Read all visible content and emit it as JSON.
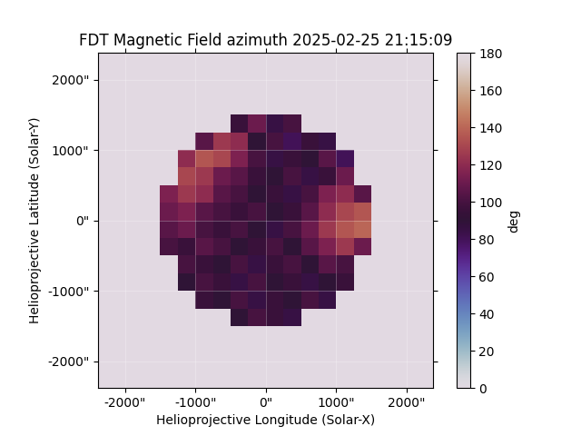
{
  "chart_data": {
    "type": "heatmap",
    "title": "FDT Magnetic Field azimuth 2025-02-25 21:15:09",
    "x_label": "Helioprojective Longitude (Solar-X)",
    "y_label": "Helioprojective Latitude (Solar-Y)",
    "xlim": [
      -2380,
      2380
    ],
    "ylim": [
      -2380,
      2380
    ],
    "xticks": [
      {
        "value": -2000,
        "label": "-2000\""
      },
      {
        "value": -1000,
        "label": "-1000\""
      },
      {
        "value": 0,
        "label": "0\""
      },
      {
        "value": 1000,
        "label": "1000\""
      },
      {
        "value": 2000,
        "label": "2000\""
      }
    ],
    "yticks": [
      {
        "value": -2000,
        "label": "-2000\""
      },
      {
        "value": -1000,
        "label": "-1000\""
      },
      {
        "value": 0,
        "label": "0\""
      },
      {
        "value": 1000,
        "label": "1000\""
      },
      {
        "value": 2000,
        "label": "2000\""
      }
    ],
    "grid": true,
    "color": "twilight",
    "x_edges": [
      -1500,
      -1250,
      -1000,
      -750,
      -500,
      -250,
      0,
      250,
      500,
      750,
      1000,
      1250,
      1500
    ],
    "y_edges": [
      1500,
      1250,
      1000,
      750,
      500,
      250,
      0,
      -250,
      -500,
      -750,
      -1000,
      -1250,
      -1500
    ],
    "cells": [
      [
        null,
        null,
        null,
        null,
        95,
        110,
        85,
        100,
        null,
        null,
        null,
        null
      ],
      [
        null,
        null,
        105,
        125,
        120,
        90,
        100,
        80,
        95,
        85,
        null,
        null
      ],
      [
        null,
        120,
        135,
        130,
        115,
        100,
        85,
        95,
        90,
        105,
        80,
        null
      ],
      [
        null,
        130,
        125,
        110,
        105,
        95,
        90,
        100,
        85,
        95,
        110,
        null
      ],
      [
        115,
        125,
        120,
        105,
        100,
        90,
        95,
        85,
        100,
        115,
        120,
        105
      ],
      [
        110,
        115,
        105,
        100,
        95,
        100,
        90,
        95,
        105,
        120,
        130,
        135
      ],
      [
        105,
        110,
        100,
        95,
        100,
        90,
        85,
        100,
        110,
        125,
        135,
        140
      ],
      [
        100,
        95,
        105,
        100,
        90,
        95,
        100,
        90,
        105,
        115,
        125,
        110
      ],
      [
        null,
        100,
        95,
        90,
        100,
        85,
        95,
        100,
        90,
        105,
        100,
        null
      ],
      [
        null,
        90,
        100,
        95,
        85,
        100,
        90,
        95,
        85,
        90,
        95,
        null
      ],
      [
        null,
        null,
        95,
        90,
        100,
        85,
        95,
        90,
        100,
        85,
        null,
        null
      ],
      [
        null,
        null,
        null,
        null,
        90,
        100,
        95,
        85,
        null,
        null,
        null,
        null
      ]
    ],
    "colorbar": {
      "label": "deg",
      "range": [
        0,
        180
      ],
      "ticks": [
        0,
        20,
        40,
        60,
        80,
        100,
        120,
        140,
        160,
        180
      ]
    }
  }
}
